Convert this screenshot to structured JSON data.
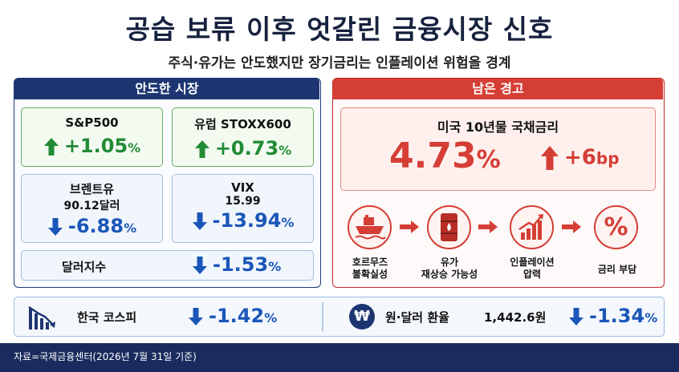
{
  "header": {
    "title": "공습 보류 이후 엇갈린 금융시장 신호",
    "subtitle": "주식·유가는 안도했지만 장기금리는 인플레이션 위험을 경계"
  },
  "left_panel": {
    "heading": "안도한 시장",
    "cards": {
      "sp500": {
        "label": "S&P500",
        "value": "+1.05",
        "unit": "%"
      },
      "stoxx": {
        "label": "유럽 STOXX600",
        "value": "+0.73",
        "unit": "%"
      },
      "brent": {
        "label": "브렌트유",
        "sub": "90.12달러",
        "value": "-6.88",
        "unit": "%"
      },
      "vix": {
        "label": "VIX",
        "sub": "15.99",
        "value": "-13.94",
        "unit": "%"
      },
      "dollar_index": {
        "label": "달러지수",
        "value": "-1.53",
        "unit": "%"
      }
    }
  },
  "right_panel": {
    "heading": "남은 경고",
    "treasury": {
      "label": "미국 10년물 국채금리",
      "value": "4.73",
      "unit": "%",
      "change": "+6",
      "change_unit": "bp"
    },
    "flow": [
      {
        "icon": "ship-icon",
        "label_line1": "호르무즈",
        "label_line2": "불확실성"
      },
      {
        "icon": "oil-barrel-icon",
        "label_line1": "유가",
        "label_line2": "재상승 가능성"
      },
      {
        "icon": "rising-chart-icon",
        "label_line1": "인플레이션",
        "label_line2": "압력"
      },
      {
        "icon": "percent-icon",
        "label_line1": "금리 부담",
        "label_line2": ""
      }
    ]
  },
  "bottom": {
    "kospi": {
      "label": "한국 코스피",
      "value": "-1.42",
      "unit": "%"
    },
    "fx": {
      "label": "원·달러 환율",
      "rate": "1,442.6",
      "rate_unit": "원",
      "value": "-1.34",
      "unit": "%",
      "symbol": "₩"
    }
  },
  "footer": {
    "source": "자료=국제금융센터(2026년 7월 31일 기준)"
  },
  "colors": {
    "navy": "#1d3672",
    "red": "#d53e35",
    "green": "#228b35",
    "blue": "#1a56b8"
  }
}
